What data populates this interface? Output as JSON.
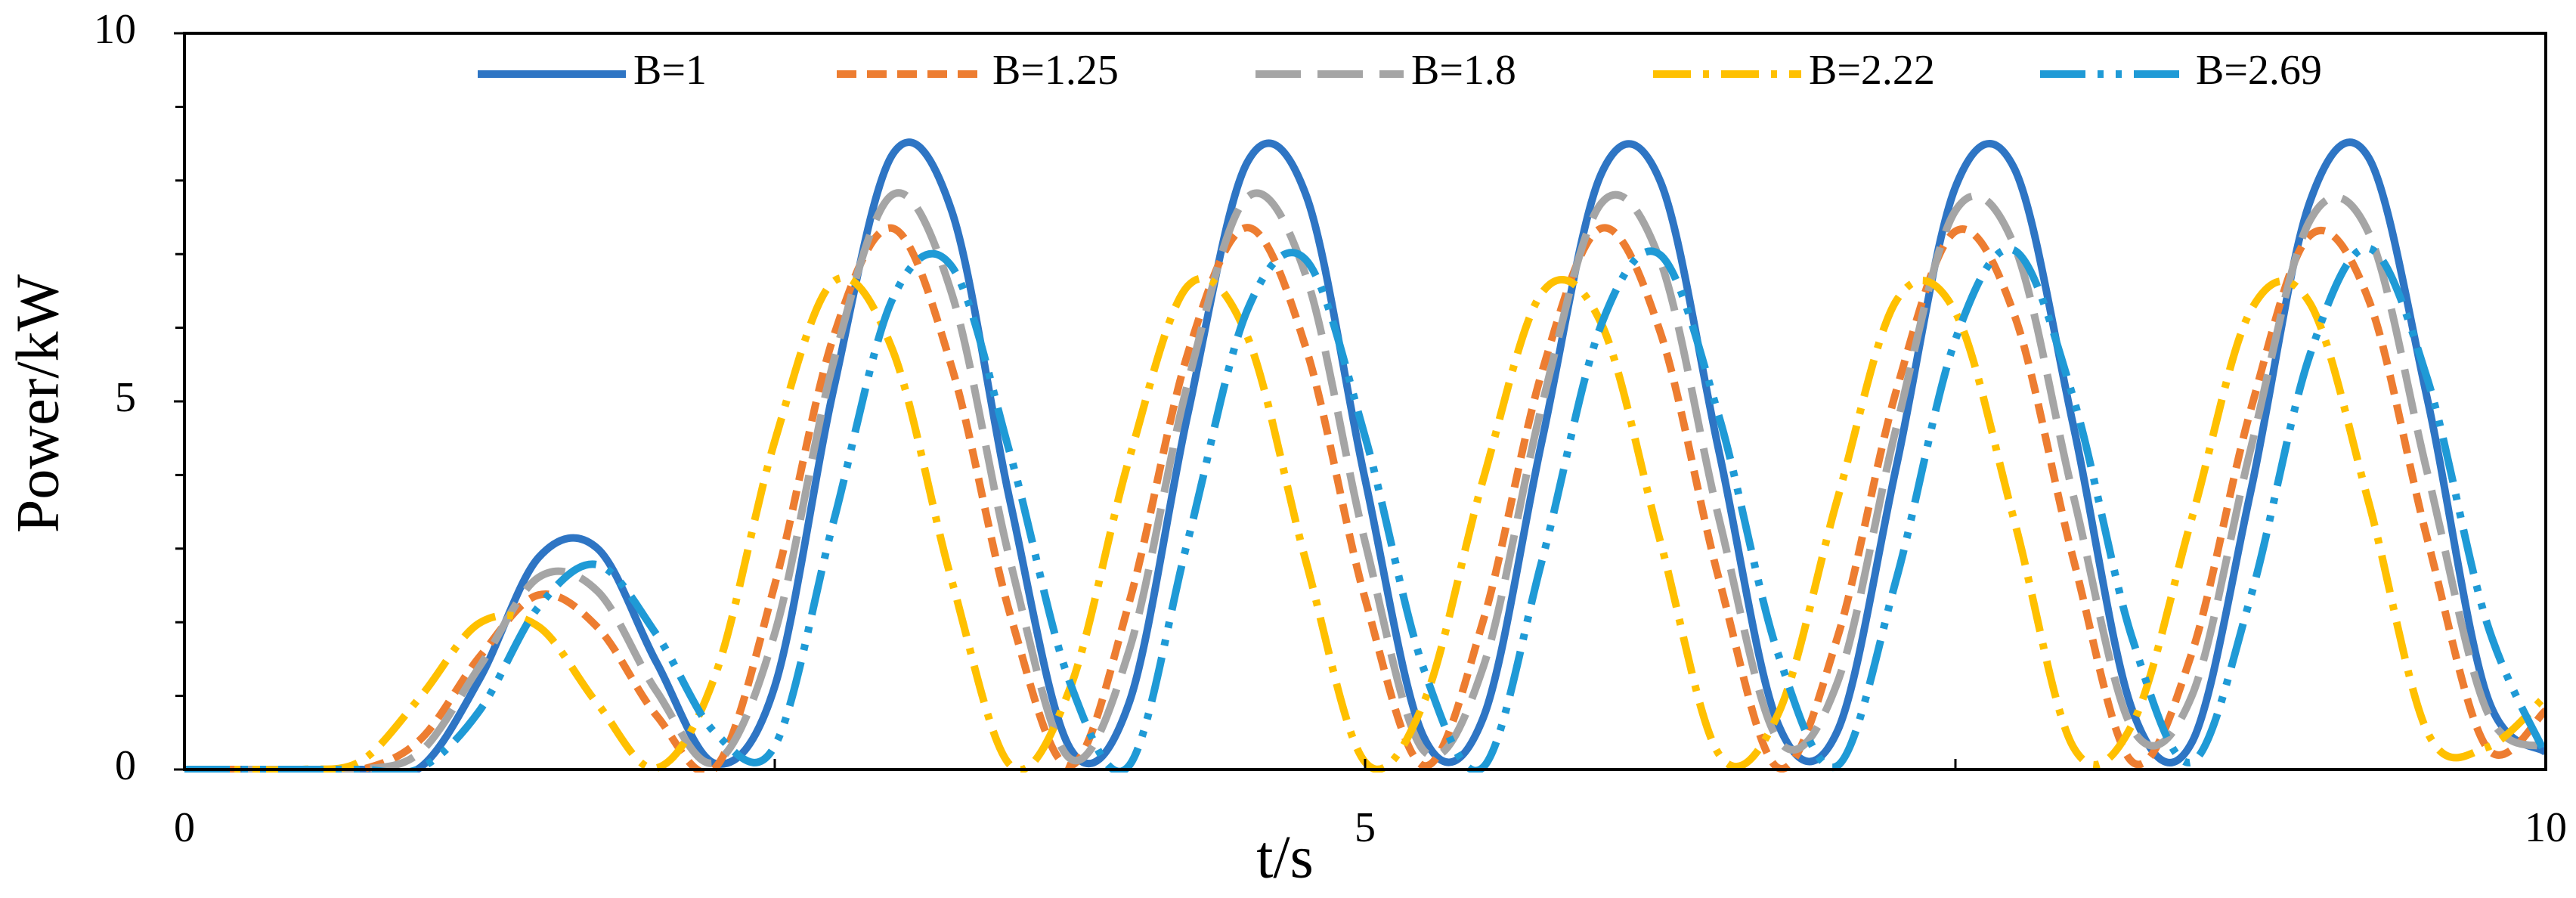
{
  "chart_data": {
    "type": "line",
    "xlabel": "t/s",
    "ylabel": "Power/kW",
    "x": [
      0,
      0.25,
      0.5,
      0.75,
      1,
      1.25,
      1.5,
      1.75,
      2,
      2.25,
      2.5,
      2.75,
      3,
      3.25,
      3.5,
      3.75,
      4,
      4.25,
      4.5,
      4.75,
      5,
      5.25,
      5.5,
      5.75,
      6,
      6.25,
      6.5,
      6.75,
      7,
      7.25,
      7.5,
      7.75,
      8,
      8.25,
      8.5,
      8.75,
      9,
      9.25,
      9.5,
      9.75,
      10
    ],
    "series": [
      {
        "name": "B=1",
        "color": "#2e75c4",
        "dash": "solid",
        "values": [
          0,
          0,
          0,
          0,
          0.03,
          1.23,
          2.88,
          3.0,
          1.45,
          0.08,
          1.13,
          5.18,
          8.36,
          7.58,
          3.59,
          0.29,
          0.9,
          4.84,
          8.24,
          7.8,
          3.94,
          0.43,
          0.7,
          4.48,
          8.09,
          7.99,
          4.3,
          0.61,
          0.52,
          4.12,
          7.91,
          8.16,
          4.66,
          0.8,
          0.36,
          3.77,
          7.7,
          8.31,
          5.01,
          1.01,
          0.23
        ]
      },
      {
        "name": "B=1.25",
        "color": "#ed7d31",
        "dash": "dash",
        "values": [
          0,
          0,
          0,
          0,
          0.41,
          1.53,
          2.37,
          1.93,
          0.73,
          0.03,
          2.51,
          5.89,
          7.35,
          5.46,
          2.07,
          0.05,
          2.26,
          5.66,
          7.36,
          5.72,
          2.32,
          0.05,
          2.02,
          5.41,
          7.35,
          5.94,
          2.57,
          0.02,
          1.79,
          5.15,
          7.31,
          6.17,
          2.85,
          0.1,
          1.57,
          4.88,
          7.25,
          6.38,
          3.11,
          0.3,
          0.8
        ]
      },
      {
        "name": "B=1.8",
        "color": "#a5a5a5",
        "dash": "longdash",
        "values": [
          0,
          0,
          0,
          0,
          0.24,
          1.4,
          2.61,
          2.42,
          1.06,
          0.1,
          1.85,
          5.55,
          7.81,
          6.46,
          2.79,
          0.15,
          1.61,
          5.26,
          7.77,
          6.7,
          3.09,
          0.25,
          1.39,
          4.96,
          7.69,
          6.91,
          3.39,
          0.4,
          1.18,
          4.65,
          7.59,
          7.11,
          3.71,
          0.55,
          0.99,
          4.35,
          7.45,
          7.29,
          4.01,
          0.8,
          0.3
        ]
      },
      {
        "name": "B=2.22",
        "color": "#ffc000",
        "dash": "dashdot",
        "values": [
          0,
          0,
          0,
          0.12,
          0.99,
          1.99,
          1.94,
          0.89,
          0.02,
          1.3,
          4.46,
          6.63,
          5.69,
          2.56,
          0.05,
          1.1,
          4.21,
          6.57,
          5.89,
          2.82,
          0.1,
          0.92,
          3.94,
          6.48,
          6.06,
          3.1,
          0.2,
          0.76,
          3.67,
          6.37,
          6.21,
          3.37,
          0.3,
          0.62,
          3.4,
          6.23,
          6.34,
          3.63,
          0.5,
          0.3,
          1.0
        ]
      },
      {
        "name": "B=2.69",
        "color": "#1f9ad6",
        "dash": "longdashdotdot",
        "values": [
          0,
          0,
          0,
          0,
          0.02,
          0.8,
          2.21,
          2.78,
          1.83,
          0.49,
          0.32,
          3.38,
          6.4,
          6.83,
          4.25,
          1.18,
          0.05,
          3.12,
          6.23,
          6.92,
          4.52,
          1.35,
          0.03,
          2.85,
          6.04,
          6.99,
          4.78,
          1.56,
          0.05,
          2.59,
          5.84,
          7.05,
          5.04,
          1.77,
          0.1,
          2.34,
          5.62,
          7.08,
          5.29,
          2.0,
          0.2
        ]
      }
    ],
    "xlim": [
      0,
      10
    ],
    "xticks": [
      0,
      5,
      10
    ],
    "xminorticks": [
      2.5,
      7.5
    ],
    "ylim": [
      0,
      10
    ],
    "yticks": [
      0,
      5,
      10
    ],
    "yminorticks": [
      1,
      2,
      3,
      4,
      6,
      7,
      8,
      9
    ],
    "grid": false,
    "legend": "top"
  }
}
